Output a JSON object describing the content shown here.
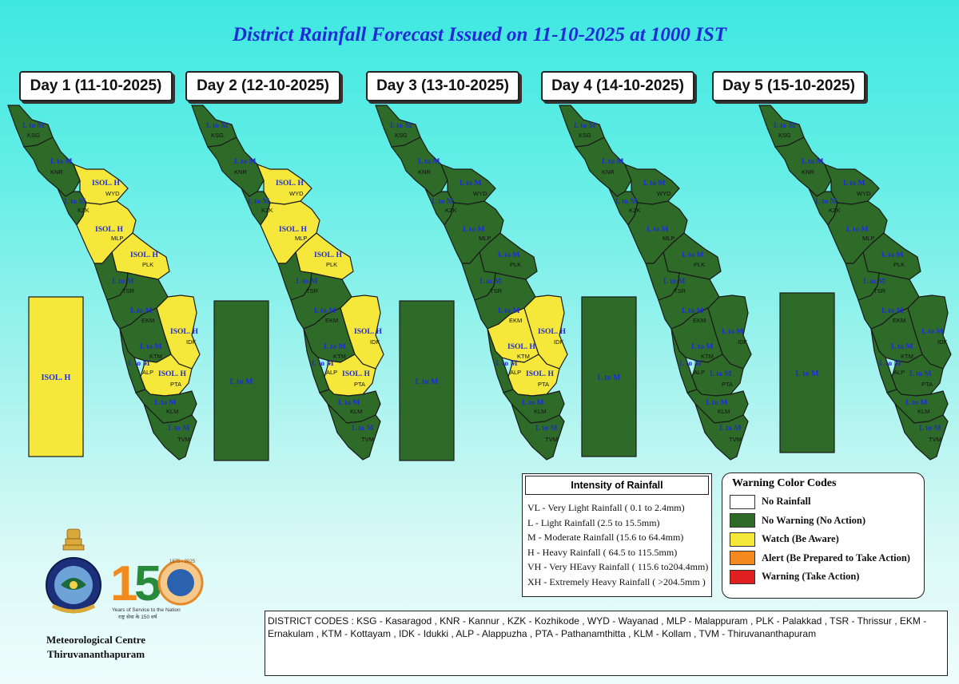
{
  "title": "District Rainfall Forecast Issued on  11-10-2025 at 1000 IST",
  "days": [
    {
      "label": "Day 1 (11-10-2025)",
      "offshore": "ISOL. H",
      "offshore_color": "#f5e83a"
    },
    {
      "label": "Day 2 (12-10-2025)",
      "offshore": "L to M",
      "offshore_color": "#2e6b28"
    },
    {
      "label": "Day 3 (13-10-2025)",
      "offshore": "L to M",
      "offshore_color": "#2e6b28"
    },
    {
      "label": "Day 4 (14-10-2025)",
      "offshore": "L to M",
      "offshore_color": "#2e6b28"
    },
    {
      "label": "Day 5 (15-10-2025)",
      "offshore": "L to M",
      "offshore_color": "#2e6b28"
    }
  ],
  "districts": [
    "KSG",
    "KNR",
    "WYD",
    "KZK",
    "MLP",
    "PLK",
    "TSR",
    "EKM",
    "IDK",
    "KTM",
    "ALP",
    "PTA",
    "KLM",
    "TVM"
  ],
  "day_forecasts": [
    {
      "KSG": "L to M",
      "KNR": "L to M",
      "WYD": "ISOL. H",
      "KZK": "L to M",
      "MLP": "ISOL. H",
      "PLK": "ISOL. H",
      "TSR": "L to M",
      "EKM": "L to M",
      "IDK": "ISOL. H",
      "KTM": "L to M",
      "ALP": "L to M",
      "PTA": "ISOL. H",
      "KLM": "L to M",
      "TVM": "L to M"
    },
    {
      "KSG": "L to M",
      "KNR": "L to M",
      "WYD": "ISOL. H",
      "KZK": "L to M",
      "MLP": "ISOL. H",
      "PLK": "ISOL. H",
      "TSR": "L to M",
      "EKM": "L to M",
      "IDK": "ISOL. H",
      "KTM": "L to M",
      "ALP": "L to M",
      "PTA": "ISOL. H",
      "KLM": "L to M",
      "TVM": "L to M"
    },
    {
      "KSG": "L to M",
      "KNR": "L to M",
      "WYD": "L to M",
      "KZK": "L to M",
      "MLP": "L to M",
      "PLK": "L to M",
      "TSR": "L to M",
      "EKM": "L to M",
      "IDK": "ISOL. H",
      "KTM": "ISOL. H",
      "ALP": "L to M",
      "PTA": "ISOL. H",
      "KLM": "L to M",
      "TVM": "L to M"
    },
    {
      "KSG": "L to M",
      "KNR": "L to M",
      "WYD": "L to M",
      "KZK": "L to M",
      "MLP": "L to M",
      "PLK": "L to M",
      "TSR": "L to M",
      "EKM": "L to M",
      "IDK": "L to M",
      "KTM": "L to M",
      "ALP": "L to M",
      "PTA": "L to M",
      "KLM": "L to M",
      "TVM": "L to M"
    },
    {
      "KSG": "L to M",
      "KNR": "L to M",
      "WYD": "L to M",
      "KZK": "L to M",
      "MLP": "L to M",
      "PLK": "L to M",
      "TSR": "L to M",
      "EKM": "L to M",
      "IDK": "L to M",
      "KTM": "L to M",
      "ALP": "L to M",
      "PTA": "L to M",
      "KLM": "L to M",
      "TVM": "L to M"
    }
  ],
  "colors": {
    "green": "#2e6b28",
    "yellow": "#f5e83a",
    "label_blue": "#1f2bd6",
    "orange": "#f5891f",
    "red": "#e02020",
    "white": "#ffffff"
  },
  "intensity": {
    "title": "Intensity of Rainfall",
    "rows": [
      "VL - Very Light Rainfall ( 0.1 to 2.4mm)",
      "L  - Light Rainfall (2.5 to 15.5mm)",
      "M  - Moderate Rainfall (15.6 to 64.4mm)",
      "H  - Heavy Rainfall ( 64.5 to 115.5mm)",
      "VH - Very HEavy Rainfall ( 115.6 to204.4mm)",
      "XH - Extremely Heavy Rainfall ( >204.5mm )"
    ]
  },
  "warning_codes": {
    "title": "Warning Color Codes",
    "rows": [
      {
        "label": "No Rainfall",
        "color": "#ffffff"
      },
      {
        "label": "No Warning (No Action)",
        "color": "#2e6b28"
      },
      {
        "label": "Watch (Be Aware)",
        "color": "#f5e83a"
      },
      {
        "label": "Alert (Be Prepared to Take Action)",
        "color": "#f5891f"
      },
      {
        "label": "Warning (Take Action)",
        "color": "#e02020"
      }
    ]
  },
  "district_codes": "DISTRICT CODES : KSG - Kasaragod , KNR - Kannur , KZK - Kozhikode , WYD - Wayanad , MLP - Malappuram , PLK - Palakkad , TSR - Thrissur , EKM - Ernakulam , KTM - Kottayam , IDK - Idukki , ALP - Alappuzha ,      PTA - Pathanamthitta , KLM - Kollam , TVM - Thiruvananthapuram",
  "org": {
    "line1": "Meteorological Centre",
    "line2": "Thiruvananthapuram"
  },
  "anniversary": {
    "number": "150",
    "years": "1875 - 2025",
    "tag1": "Years of Service to the Nation",
    "tag2": "राष्ट्र सेवा के 150 वर्ष"
  },
  "emblem_text": "भारत मौसम विज्ञान विभाग"
}
